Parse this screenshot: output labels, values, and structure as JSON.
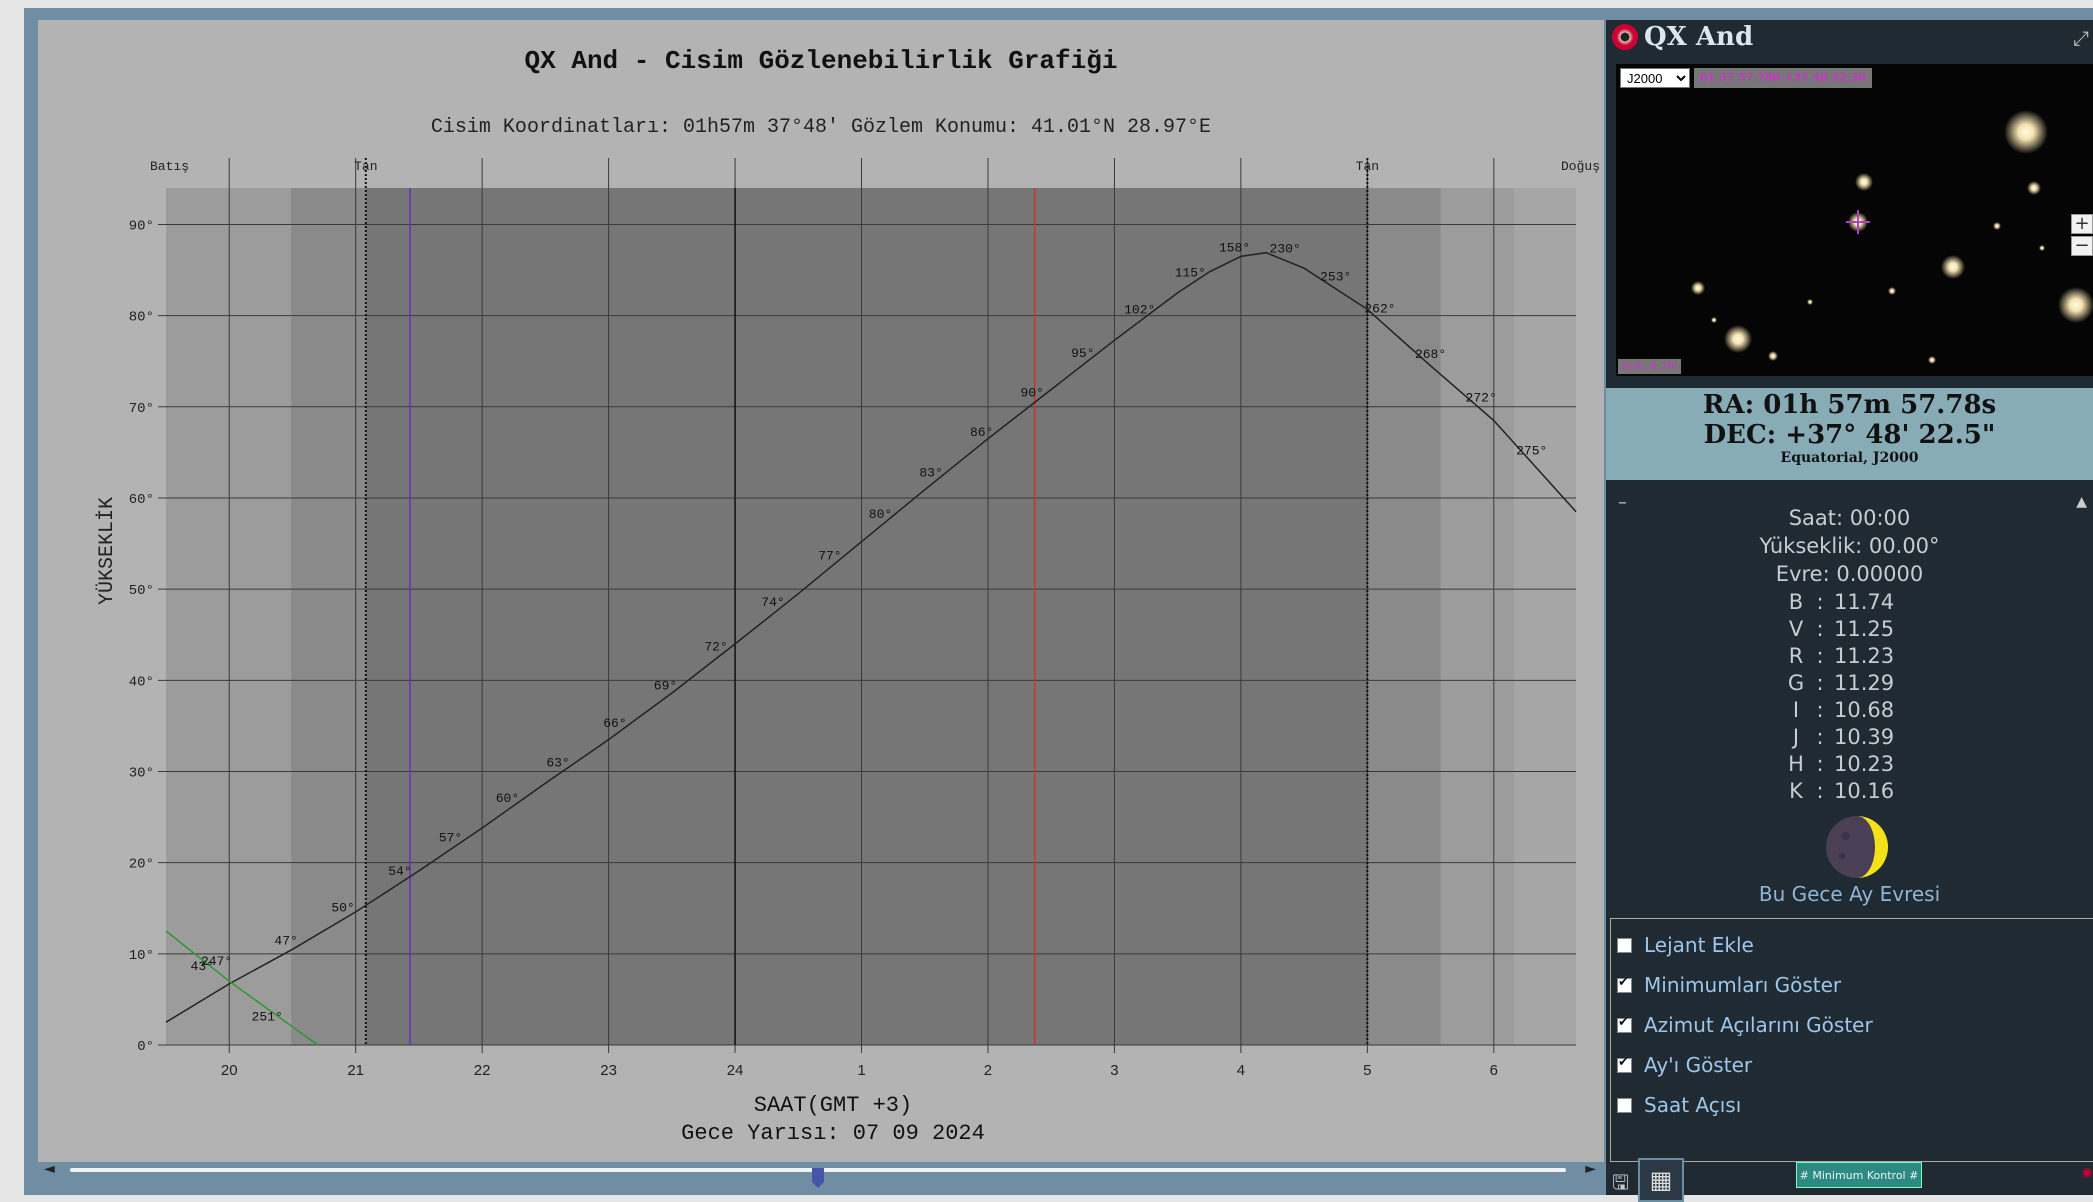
{
  "chart_panel": {
    "title": "QX And - Cisim Gözlenebilirlik Grafiği",
    "subtitle": "Cisim Koordinatları: 01h57m 37°48' Gözlem Konumu: 41.01°N 28.97°E",
    "ylabel": "YÜKSEKLİK",
    "xlabel": "SAAT(GMT +3)",
    "midnight": "Gece Yarısı: 07 09 2024",
    "scroll_left": "◄",
    "scroll_right": "►",
    "scroll_position": 0.5
  },
  "chart_data": {
    "type": "line",
    "xlabel": "SAAT(GMT +3)",
    "ylabel": "YÜKSEKLİK",
    "x_ticks": [
      "20",
      "21",
      "22",
      "23",
      "24",
      "1",
      "2",
      "3",
      "4",
      "5",
      "6"
    ],
    "x_range": [
      19.5,
      30.65
    ],
    "y_ticks": [
      "0°",
      "10°",
      "20°",
      "30°",
      "40°",
      "50°",
      "60°",
      "70°",
      "80°",
      "90°"
    ],
    "ylim": [
      0,
      94
    ],
    "twilight_labels": [
      {
        "text": "Batış",
        "x": 19.5
      },
      {
        "text": "Tan",
        "x": 21.08
      },
      {
        "text": "Tan",
        "x": 29.0
      },
      {
        "text": "Doğuş",
        "x": 30.65
      }
    ],
    "night_bands": [
      {
        "x0": 19.5,
        "x1": 20.49,
        "shade": "#9c9c9c"
      },
      {
        "x0": 20.49,
        "x1": 21.08,
        "shade": "#8a8a8a"
      },
      {
        "x0": 21.08,
        "x1": 29.0,
        "shade": "#767676"
      },
      {
        "x0": 29.0,
        "x1": 29.58,
        "shade": "#8a8a8a"
      },
      {
        "x0": 29.58,
        "x1": 30.16,
        "shade": "#9c9c9c"
      }
    ],
    "series": [
      {
        "color": "#222222",
        "points": [
          [
            19.5,
            2.5
          ],
          [
            20.0,
            6.7
          ],
          [
            20.5,
            10.5
          ],
          [
            21.0,
            14.6
          ],
          [
            21.5,
            19.1
          ],
          [
            22.0,
            23.8
          ],
          [
            22.5,
            28.7
          ],
          [
            23.0,
            33.5
          ],
          [
            23.5,
            38.6
          ],
          [
            24.0,
            44.0
          ],
          [
            24.5,
            49.5
          ],
          [
            25.0,
            55.2
          ],
          [
            25.5,
            60.9
          ],
          [
            26.0,
            66.5
          ],
          [
            26.5,
            71.9
          ],
          [
            27.0,
            77.3
          ],
          [
            27.5,
            82.5
          ],
          [
            27.75,
            84.8
          ],
          [
            28.0,
            86.5
          ],
          [
            28.2,
            86.9
          ],
          [
            28.5,
            85.2
          ],
          [
            29.0,
            80.7
          ],
          [
            29.5,
            74.5
          ],
          [
            30.0,
            68.5
          ],
          [
            30.65,
            58.5
          ]
        ],
        "azimuth_labels": [
          [
            20.45,
            47,
            "47°"
          ],
          [
            20.9,
            50,
            "50°"
          ],
          [
            21.35,
            54,
            "54°"
          ],
          [
            21.75,
            57,
            "57°"
          ],
          [
            22.2,
            60,
            "60°"
          ],
          [
            22.6,
            63,
            "63°"
          ],
          [
            23.05,
            66,
            "66°"
          ],
          [
            23.45,
            69,
            "69°"
          ],
          [
            23.85,
            72,
            "72°"
          ],
          [
            24.3,
            74,
            "74°"
          ],
          [
            24.75,
            77,
            "77°"
          ],
          [
            25.15,
            80,
            "80°"
          ],
          [
            25.55,
            83,
            "83°"
          ],
          [
            25.95,
            86,
            "86°"
          ],
          [
            26.35,
            90,
            "90°"
          ],
          [
            26.75,
            95,
            "95°"
          ],
          [
            27.2,
            102,
            "102°"
          ],
          [
            27.6,
            115,
            "115°"
          ],
          [
            27.95,
            158,
            "158°"
          ],
          [
            28.35,
            230,
            "230°"
          ],
          [
            28.75,
            253,
            "253°"
          ],
          [
            29.1,
            262,
            "262°"
          ],
          [
            29.5,
            268,
            "268°"
          ],
          [
            29.9,
            272,
            "272°"
          ],
          [
            30.3,
            275,
            "275°"
          ]
        ]
      },
      {
        "color": "#2a9a2a",
        "points": [
          [
            19.5,
            12.5
          ],
          [
            20.0,
            7.0
          ],
          [
            20.5,
            2.0
          ],
          [
            20.7,
            0.0
          ]
        ],
        "azimuth_labels": [
          [
            19.9,
            247,
            "247°"
          ],
          [
            19.85,
            43,
            "43°"
          ],
          [
            20.3,
            251,
            "251°"
          ]
        ]
      }
    ],
    "markers": [
      {
        "x": 21.08,
        "color": "#111111",
        "style": "dotted"
      },
      {
        "x": 21.43,
        "color": "#6a2fbf",
        "style": "solid"
      },
      {
        "x": 24.0,
        "color": "#111111",
        "style": "solid"
      },
      {
        "x": 26.37,
        "color": "#d63030",
        "style": "solid"
      },
      {
        "x": 29.0,
        "color": "#111111",
        "style": "dotted"
      }
    ]
  },
  "sidebar": {
    "title": "QX And",
    "expand_icon": "expand-icon",
    "epoch_select": "J2000",
    "coord_tag": "01 57 57.780 +37 48 22.50",
    "fov": "FoV: 4.79'",
    "zoom_in": "+",
    "zoom_out": "−",
    "ra": "RA: 01h 57m 57.78s",
    "dec": "DEC: +37° 48' 22.5\"",
    "frame": "Equatorial, J2000",
    "collapse": "–",
    "expand_up": "▲",
    "time": "Saat: 00:00",
    "altitude": "Yükseklik: 00.00°",
    "phase": "Evre: 0.00000",
    "bands": [
      {
        "band": "B",
        "sep": ":",
        "mag": "11.74"
      },
      {
        "band": "V",
        "sep": ":",
        "mag": "11.25"
      },
      {
        "band": "R",
        "sep": ":",
        "mag": "11.23"
      },
      {
        "band": "G",
        "sep": ":",
        "mag": "11.29"
      },
      {
        "band": "I",
        "sep": ":",
        "mag": "10.68"
      },
      {
        "band": "J",
        "sep": ":",
        "mag": "10.39"
      },
      {
        "band": "H",
        "sep": ":",
        "mag": "10.23"
      },
      {
        "band": "K",
        "sep": ":",
        "mag": "10.16"
      }
    ],
    "moon_caption": "Bu Gece Ay Evresi",
    "options": [
      {
        "label": "Lejant Ekle",
        "checked": false
      },
      {
        "label": "Minimumları Göster",
        "checked": true
      },
      {
        "label": "Azimut Açılarını Göster",
        "checked": true
      },
      {
        "label": "Ay'ı Göster",
        "checked": true
      },
      {
        "label": "Saat Açısı",
        "checked": false
      }
    ],
    "min_button": "# Minimum Kontrol #"
  }
}
